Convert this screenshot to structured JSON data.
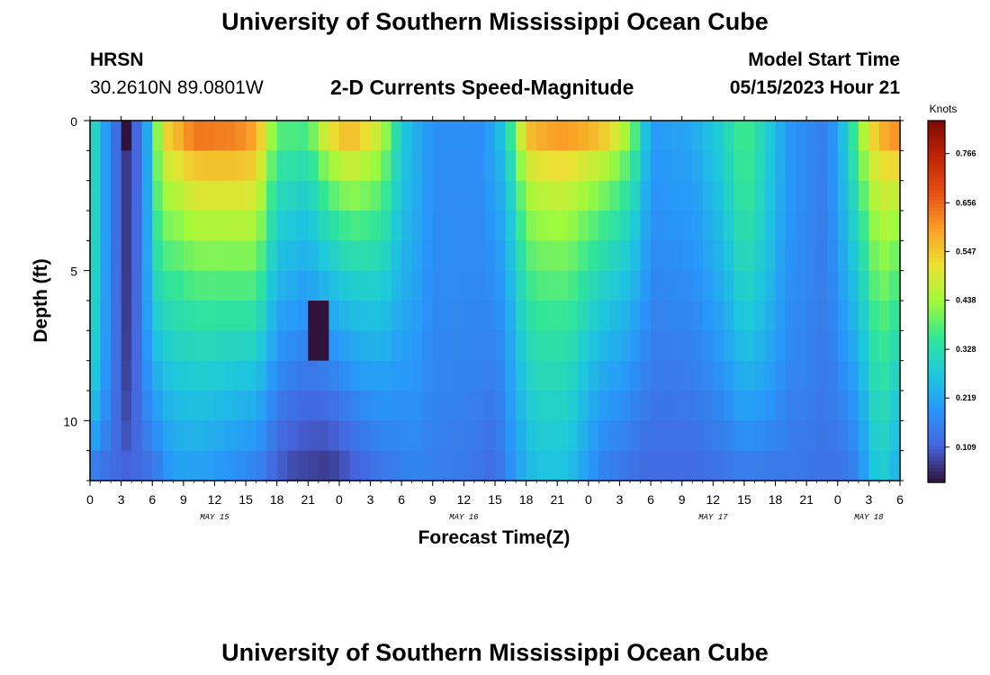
{
  "header": {
    "title": "University of Southern Mississippi Ocean Cube",
    "station": "HRSN",
    "coords": "30.2610N  89.0801W",
    "subtitle": "2-D Currents Speed-Magnitude",
    "model_start_label": "Model Start Time",
    "model_start_value": "05/15/2023 Hour 21"
  },
  "footer": {
    "title": "University of Southern Mississippi Ocean Cube"
  },
  "chart_data": {
    "type": "heatmap",
    "title": "2-D Currents Speed-Magnitude",
    "xlabel": "Forecast Time(Z)",
    "ylabel": "Depth (ft)",
    "colorbar_label": "Knots",
    "colorbar_ticks": [
      "0.109",
      "0.219",
      "0.328",
      "0.438",
      "0.547",
      "0.656",
      "0.766"
    ],
    "colorbar_tick_values": [
      0.109,
      0.219,
      0.328,
      0.438,
      0.547,
      0.656,
      0.766
    ],
    "color_range": [
      0.03,
      0.84
    ],
    "xlim_hours": [
      0,
      78
    ],
    "ylim_ft": [
      0,
      12
    ],
    "x_tick_labels": [
      "0",
      "3",
      "6",
      "9",
      "12",
      "15",
      "18",
      "21",
      "0",
      "3",
      "6",
      "9",
      "12",
      "15",
      "18",
      "21",
      "0",
      "3",
      "6",
      "9",
      "12",
      "15",
      "18",
      "21",
      "0",
      "3",
      "6"
    ],
    "x_tick_hours": [
      0,
      3,
      6,
      9,
      12,
      15,
      18,
      21,
      24,
      27,
      30,
      33,
      36,
      39,
      42,
      45,
      48,
      51,
      54,
      57,
      60,
      63,
      66,
      69,
      72,
      75,
      78
    ],
    "y_tick_labels": [
      "0",
      "5",
      "10"
    ],
    "y_tick_values": [
      0,
      5,
      10
    ],
    "dates": [
      {
        "label": "MAY 15",
        "hour": 12
      },
      {
        "label": "MAY 16",
        "hour": 36
      },
      {
        "label": "MAY 17",
        "hour": 60
      },
      {
        "label": "MAY 18",
        "hour": 75
      }
    ],
    "depth_rows_ft": [
      0.5,
      1.5,
      2.5,
      3.5,
      4.5,
      5.5,
      6.5,
      7.5,
      8.5,
      9.5,
      10.5,
      11.5
    ],
    "surface_speed_keypoints": [
      [
        0,
        0.35
      ],
      [
        1,
        0.25
      ],
      [
        2,
        0.16
      ],
      [
        3.5,
        0.07
      ],
      [
        5,
        0.14
      ],
      [
        6,
        0.3
      ],
      [
        7,
        0.55
      ],
      [
        10,
        0.76
      ],
      [
        14,
        0.7
      ],
      [
        16,
        0.62
      ],
      [
        18,
        0.4
      ],
      [
        21,
        0.4
      ],
      [
        23,
        0.6
      ],
      [
        25,
        0.68
      ],
      [
        28,
        0.5
      ],
      [
        30,
        0.28
      ],
      [
        33,
        0.18
      ],
      [
        38,
        0.18
      ],
      [
        40,
        0.3
      ],
      [
        42,
        0.68
      ],
      [
        45,
        0.78
      ],
      [
        49,
        0.75
      ],
      [
        52,
        0.48
      ],
      [
        54,
        0.2
      ],
      [
        58,
        0.22
      ],
      [
        61,
        0.3
      ],
      [
        63,
        0.38
      ],
      [
        65,
        0.3
      ],
      [
        67,
        0.2
      ],
      [
        71,
        0.15
      ],
      [
        73,
        0.3
      ],
      [
        75,
        0.55
      ],
      [
        78,
        0.8
      ]
    ],
    "bottom_speed_keypoints": [
      [
        0,
        0.12
      ],
      [
        6,
        0.12
      ],
      [
        8,
        0.2
      ],
      [
        11,
        0.2
      ],
      [
        16,
        0.15
      ],
      [
        19,
        0.08
      ],
      [
        23,
        0.06
      ],
      [
        27,
        0.12
      ],
      [
        31,
        0.16
      ],
      [
        37,
        0.14
      ],
      [
        39,
        0.12
      ],
      [
        41,
        0.2
      ],
      [
        43,
        0.26
      ],
      [
        46,
        0.26
      ],
      [
        49,
        0.16
      ],
      [
        53,
        0.12
      ],
      [
        58,
        0.12
      ],
      [
        63,
        0.14
      ],
      [
        69,
        0.14
      ],
      [
        72,
        0.13
      ],
      [
        74,
        0.16
      ],
      [
        76,
        0.3
      ],
      [
        78,
        0.22
      ]
    ],
    "core_width_keypoints": [
      [
        0,
        0.2
      ],
      [
        5,
        0.2
      ],
      [
        6,
        0.5
      ],
      [
        8,
        1.8
      ],
      [
        10,
        2.1
      ],
      [
        14,
        1.6
      ],
      [
        16,
        1.2
      ],
      [
        20,
        1.3
      ],
      [
        23,
        1.8
      ],
      [
        25,
        1.9
      ],
      [
        28,
        1.4
      ],
      [
        31,
        0.6
      ],
      [
        38,
        0.5
      ],
      [
        41,
        2.4
      ],
      [
        45,
        3.0
      ],
      [
        49,
        2.8
      ],
      [
        52,
        1.8
      ],
      [
        54,
        0.9
      ],
      [
        60,
        0.9
      ],
      [
        62,
        0.7
      ],
      [
        66,
        0.5
      ],
      [
        71,
        0.5
      ],
      [
        73,
        1.0
      ],
      [
        76,
        2.0
      ],
      [
        78,
        2.8
      ]
    ],
    "local_minima": [
      {
        "hour": 3.5,
        "depth_ft": 0.3,
        "speed": 0.02
      },
      {
        "hour": 22,
        "depth_ft": 7.0,
        "speed": 0.03
      }
    ]
  }
}
